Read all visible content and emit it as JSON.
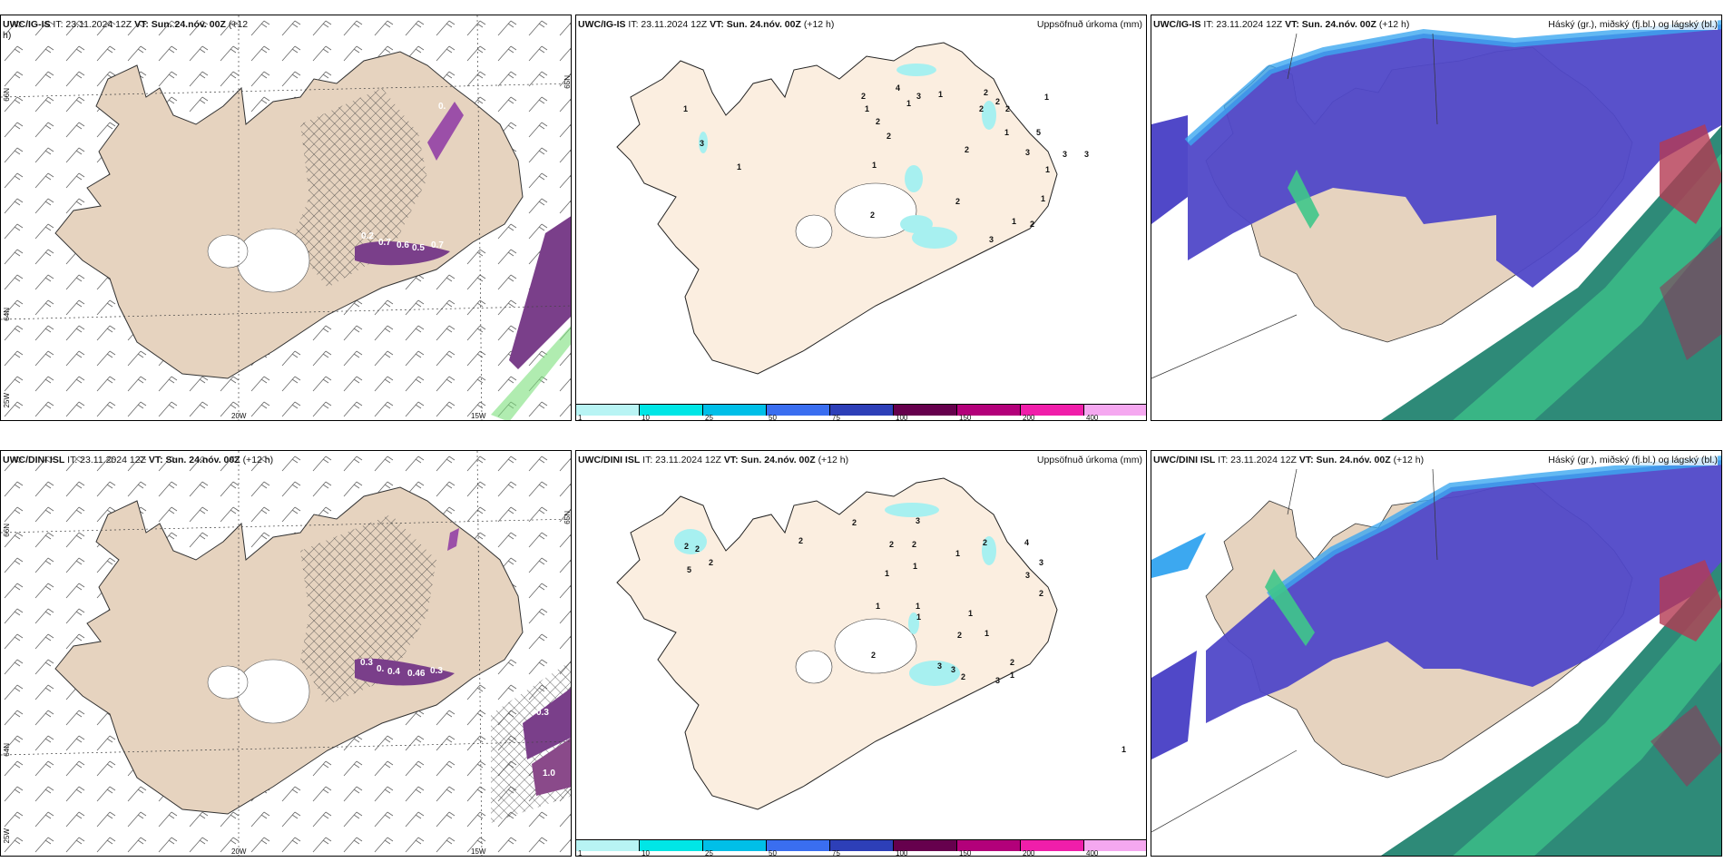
{
  "colors": {
    "land_wind": "#e6d3bf",
    "land_precip": "#fbeee0",
    "cloud_high": "#5048c8",
    "cloud_high_edge": "#3ca8f0",
    "cloud_low": "#2e8a78",
    "cloud_mid": "#3fc78a",
    "cloud_red": "#b43a52",
    "precip_light": "#a7f0f0",
    "cape_purple": "#7a3f8a"
  },
  "panels": {
    "r1c1": {
      "model": "UWC/IG-IS",
      "it": "IT: 23.11.2024 12Z",
      "vt": "VT: Sun. 24.nóv. 00Z",
      "lead": "(+12",
      "lead2": "h)",
      "grid": {
        "lat66": "66N",
        "lat64": "64N",
        "lat65r": "65N",
        "lon20": "20W",
        "lon15": "15W",
        "lon25": "25W"
      },
      "values": [
        "0.2",
        "0.7",
        "0.6",
        "0.5",
        "0.7",
        "0."
      ]
    },
    "r1c2": {
      "model": "UWC/IG-IS",
      "it": "IT: 23.11.2024 12Z",
      "vt": "VT: Sun. 24.nóv. 00Z",
      "lead": "(+12 h)",
      "title_right": "Uppsöfnuð úrkoma (mm)",
      "numbers": [
        "1",
        "3",
        "1",
        "4",
        "1",
        "3",
        "1",
        "2",
        "1",
        "2",
        "2",
        "2",
        "2",
        "1",
        "2",
        "1",
        "1",
        "2",
        "5",
        "2",
        "3",
        "1",
        "3",
        "1",
        "3",
        "2",
        "1",
        "2",
        "2",
        "3"
      ]
    },
    "r1c3": {
      "model": "UWC/IG-IS",
      "it": "IT: 23.11.2024 12Z",
      "vt": "VT: Sun. 24.nóv. 00Z",
      "lead": "(+12 h)",
      "title_right": "Háský (gr.), miðský (fj.bl.) og lágský (bl.)"
    },
    "r2c1": {
      "model": "UWC/DINI ISL",
      "it": "IT: 23.11.2024 12Z",
      "vt": "VT: Sun. 24.nóv. 00Z",
      "lead": "(+12 h)",
      "grid": {
        "lat66": "66N",
        "lat64": "64N",
        "lat65r": "65N",
        "lon20": "20W",
        "lon15": "15W",
        "lon25": "25W"
      },
      "values": [
        "0.3",
        "0.",
        "0.4",
        "0.46",
        "0.3",
        "0.3",
        "1.0"
      ]
    },
    "r2c2": {
      "model": "UWC/DINI ISL",
      "it": "IT: 23.11.2024 12Z",
      "vt": "VT: Sun. 24.nóv. 00Z",
      "lead": "(+12 h)",
      "title_right": "Uppsöfnuð úrkoma (mm)",
      "numbers": [
        "2",
        "2",
        "2",
        "5",
        "2",
        "2",
        "3",
        "2",
        "2",
        "1",
        "1",
        "1",
        "1",
        "1",
        "1",
        "1",
        "2",
        "4",
        "3",
        "3",
        "2",
        "2",
        "1",
        "2",
        "3",
        "3",
        "2",
        "3",
        "2",
        "1",
        "1"
      ]
    },
    "r2c3": {
      "model": "UWC/DINI ISL",
      "it": "IT: 23.11.2024 12Z",
      "vt": "VT: Sun. 24.nóv. 00Z",
      "lead": "(+12 h)",
      "title_right": "Háský (gr.), miðský (fj.bl.) og lágský (bl.)"
    }
  },
  "colorbar": {
    "colors": [
      "#b8f4f4",
      "#00e6e6",
      "#00bfe8",
      "#3a6ef0",
      "#2d3fb8",
      "#66004d",
      "#b3007a",
      "#f01eaa",
      "#f5a8f0"
    ],
    "ticks": [
      "1",
      "10",
      "25",
      "50",
      "75",
      "100",
      "150",
      "200",
      "400"
    ]
  }
}
